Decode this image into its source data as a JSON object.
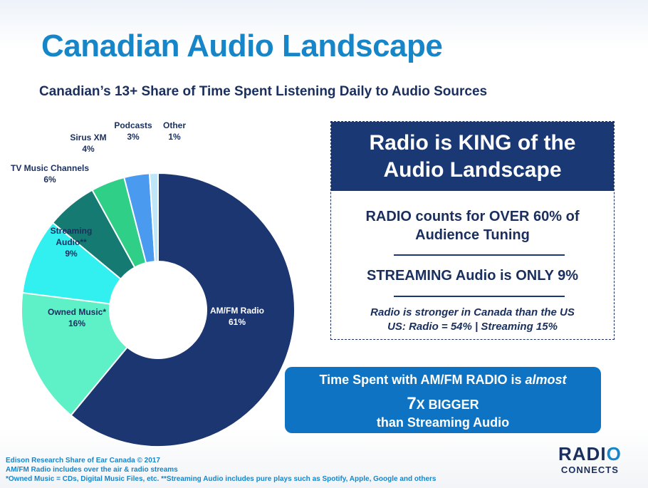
{
  "header": {
    "title": "Canadian Audio Landscape",
    "subtitle": "Canadian’s 13+ Share of Time Spent Listening Daily to Audio Sources"
  },
  "chart_data": {
    "type": "pie",
    "donut": true,
    "slices": [
      {
        "label": "AM/FM Radio",
        "value": 61,
        "value_label": "61%",
        "color": "#1b3670",
        "text_color": "#ffffff"
      },
      {
        "label": "Owned Music*",
        "value": 16,
        "value_label": "16%",
        "color": "#5ef0c6",
        "text_color": "#1a2f5e"
      },
      {
        "label": "Streaming Audio**",
        "value": 9,
        "value_label": "9%",
        "color": "#33f0f0",
        "text_color": "#1a2f5e"
      },
      {
        "label": "TV Music Channels",
        "value": 6,
        "value_label": "6%",
        "color": "#157a72",
        "text_color": "#1a2f5e"
      },
      {
        "label": "Sirus XM",
        "value": 4,
        "value_label": "4%",
        "color": "#2fcf88",
        "text_color": "#1a2f5e"
      },
      {
        "label": "Podcasts",
        "value": 3,
        "value_label": "3%",
        "color": "#4a9af0",
        "text_color": "#1a2f5e"
      },
      {
        "label": "Other",
        "value": 1,
        "value_label": "1%",
        "color": "#bfe6f7",
        "text_color": "#1a2f5e"
      }
    ]
  },
  "king_box": {
    "title_line1": "Radio is KING of the",
    "title_line2": "Audio Landscape",
    "stat1_line1": "RADIO counts for OVER 60% of",
    "stat1_line2": "Audience Tuning",
    "stat2": "STREAMING Audio is ONLY 9%",
    "note_line1": "Radio is stronger in Canada than the US",
    "note_line2": "US: Radio = 54% | Streaming 15%"
  },
  "time_box": {
    "line1_prefix": "Time Spent with AM/FM RADIO is ",
    "line1_italic": "almost",
    "line2_big": "7",
    "line2_small": "X BIGGER",
    "line3": "than Streaming Audio"
  },
  "footnotes": {
    "line1": "Edison Research Share of Ear Canada © 2017",
    "line2": "AM/FM Radio includes over the air & radio streams",
    "line3": "*Owned Music = CDs, Digital Music Files, etc.  **Streaming Audio includes pure plays such as Spotify, Apple, Google and others"
  },
  "logo": {
    "line1_a": "RADI",
    "line1_b": "O",
    "line2": "CONNECTS"
  }
}
